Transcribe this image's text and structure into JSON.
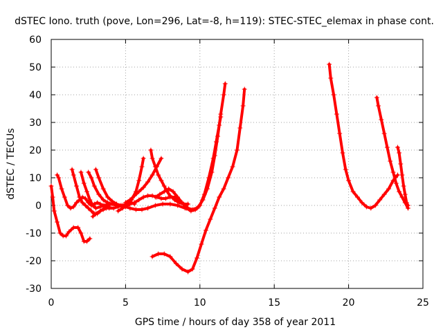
{
  "chart_data": {
    "type": "scatter",
    "title": "dSTEC Iono. truth (pove, Lon=296, Lat=-8, h=119): STEC-STEC_elemax in phase cont.",
    "xlabel": "GPS time / hours of day 358 of year 2011",
    "ylabel": "dSTEC  / TECUs",
    "xlim": [
      0,
      25
    ],
    "ylim": [
      -30,
      60
    ],
    "x_ticks": [
      0,
      5,
      10,
      15,
      20,
      25
    ],
    "y_ticks": [
      -30,
      -20,
      -10,
      0,
      10,
      20,
      30,
      40,
      50,
      60
    ],
    "x_tick_labels": [
      "0",
      "5",
      "10",
      "15",
      "20",
      "25"
    ],
    "y_tick_labels": [
      "-30",
      "-20",
      "-10",
      "0",
      "10",
      "20",
      "30",
      "40",
      "50",
      "60"
    ],
    "grid": true,
    "legend": "none",
    "marker": "+",
    "color": "#ff0000",
    "series": [
      {
        "points": [
          [
            0.0,
            7.0
          ],
          [
            0.1,
            3.0
          ],
          [
            0.2,
            -2.0
          ],
          [
            0.4,
            -6.0
          ],
          [
            0.6,
            -10.0
          ],
          [
            0.8,
            -11.0
          ],
          [
            1.0,
            -11.0
          ],
          [
            1.2,
            -9.5
          ],
          [
            1.5,
            -8.0
          ],
          [
            1.8,
            -8.0
          ],
          [
            2.0,
            -10.0
          ],
          [
            2.2,
            -13.0
          ],
          [
            2.4,
            -13.0
          ],
          [
            2.6,
            -12.0
          ]
        ]
      },
      {
        "points": [
          [
            0.4,
            11.0
          ],
          [
            0.5,
            10.0
          ],
          [
            0.7,
            6.0
          ],
          [
            0.9,
            3.0
          ],
          [
            1.1,
            0.0
          ],
          [
            1.3,
            -1.0
          ],
          [
            1.5,
            -0.5
          ],
          [
            1.7,
            1.0
          ],
          [
            1.9,
            2.0
          ],
          [
            2.1,
            3.0
          ],
          [
            2.3,
            2.5
          ],
          [
            2.5,
            1.0
          ],
          [
            2.7,
            0.0
          ],
          [
            2.9,
            0.5
          ],
          [
            3.1,
            1.0
          ],
          [
            3.3,
            0.5
          ],
          [
            3.5,
            0.0
          ],
          [
            3.7,
            0.0
          ],
          [
            3.9,
            0.0
          ]
        ]
      },
      {
        "points": [
          [
            1.4,
            13.0
          ],
          [
            1.5,
            11.0
          ],
          [
            1.7,
            7.0
          ],
          [
            1.9,
            3.0
          ],
          [
            2.1,
            1.0
          ],
          [
            2.3,
            0.0
          ],
          [
            2.5,
            -1.0
          ],
          [
            2.7,
            -2.0
          ],
          [
            2.9,
            -3.0
          ],
          [
            3.1,
            -3.0
          ],
          [
            3.3,
            -2.0
          ],
          [
            3.5,
            -1.5
          ],
          [
            3.7,
            -1.0
          ],
          [
            3.9,
            -0.5
          ]
        ]
      },
      {
        "points": [
          [
            2.0,
            12.0
          ],
          [
            2.2,
            8.0
          ],
          [
            2.4,
            5.0
          ],
          [
            2.6,
            2.0
          ],
          [
            2.8,
            0.0
          ],
          [
            3.0,
            -1.0
          ],
          [
            3.3,
            -0.5
          ],
          [
            3.6,
            0.0
          ],
          [
            3.9,
            0.5
          ]
        ]
      },
      {
        "points": [
          [
            2.5,
            12.0
          ],
          [
            2.7,
            10.0
          ],
          [
            2.9,
            7.0
          ],
          [
            3.2,
            4.0
          ],
          [
            3.5,
            2.0
          ],
          [
            3.8,
            1.0
          ],
          [
            4.1,
            0.5
          ],
          [
            4.4,
            0.0
          ],
          [
            4.7,
            0.0
          ]
        ]
      },
      {
        "points": [
          [
            3.0,
            13.0
          ],
          [
            3.2,
            10.0
          ],
          [
            3.5,
            6.0
          ],
          [
            3.8,
            3.0
          ],
          [
            4.1,
            1.5
          ],
          [
            4.4,
            0.5
          ],
          [
            4.7,
            0.0
          ]
        ]
      },
      {
        "points": [
          [
            2.8,
            -4.0
          ],
          [
            3.0,
            -3.0
          ],
          [
            3.3,
            -2.0
          ],
          [
            3.6,
            -1.0
          ],
          [
            3.9,
            -1.0
          ],
          [
            4.2,
            -1.0
          ],
          [
            4.5,
            -0.5
          ],
          [
            4.8,
            0.0
          ],
          [
            5.1,
            0.5
          ],
          [
            5.4,
            1.0
          ],
          [
            5.6,
            0.5
          ]
        ]
      },
      {
        "points": [
          [
            4.5,
            -2.0
          ],
          [
            4.8,
            -1.0
          ],
          [
            5.1,
            0.0
          ],
          [
            5.4,
            2.0
          ],
          [
            5.7,
            5.0
          ],
          [
            5.9,
            9.0
          ],
          [
            6.1,
            14.0
          ],
          [
            6.2,
            17.0
          ]
        ]
      },
      {
        "points": [
          [
            5.0,
            1.0
          ],
          [
            5.3,
            2.0
          ],
          [
            5.6,
            3.5
          ],
          [
            5.9,
            5.0
          ],
          [
            6.2,
            6.5
          ],
          [
            6.5,
            8.5
          ],
          [
            6.8,
            11.0
          ],
          [
            7.1,
            14.0
          ],
          [
            7.4,
            17.0
          ]
        ]
      },
      {
        "points": [
          [
            6.7,
            20.0
          ],
          [
            6.8,
            17.0
          ],
          [
            7.0,
            14.0
          ],
          [
            7.2,
            11.0
          ],
          [
            7.4,
            9.0
          ],
          [
            7.6,
            7.0
          ],
          [
            7.8,
            5.0
          ],
          [
            8.0,
            3.5
          ],
          [
            8.3,
            2.0
          ],
          [
            8.6,
            1.0
          ],
          [
            8.9,
            0.5
          ],
          [
            9.2,
            0.5
          ]
        ]
      },
      {
        "points": [
          [
            5.0,
            -0.5
          ],
          [
            5.3,
            0.5
          ],
          [
            5.6,
            1.0
          ],
          [
            5.9,
            2.0
          ],
          [
            6.2,
            3.0
          ],
          [
            6.5,
            3.5
          ],
          [
            6.8,
            3.5
          ],
          [
            7.1,
            3.0
          ],
          [
            7.4,
            2.5
          ],
          [
            7.7,
            2.5
          ],
          [
            8.0,
            3.0
          ],
          [
            8.3,
            3.0
          ],
          [
            8.6,
            2.0
          ],
          [
            8.9,
            0.5
          ],
          [
            9.2,
            -1.0
          ],
          [
            9.5,
            -1.5
          ],
          [
            9.8,
            -1.0
          ]
        ]
      },
      {
        "points": [
          [
            4.7,
            0.0
          ],
          [
            5.0,
            -0.5
          ],
          [
            5.3,
            -1.0
          ],
          [
            5.7,
            -1.5
          ],
          [
            6.1,
            -1.5
          ],
          [
            6.5,
            -1.0
          ],
          [
            7.0,
            0.0
          ],
          [
            7.5,
            0.5
          ],
          [
            8.0,
            0.5
          ],
          [
            8.5,
            0.0
          ],
          [
            9.0,
            -1.0
          ],
          [
            9.3,
            -1.5
          ],
          [
            9.6,
            -1.5
          ],
          [
            9.9,
            -0.5
          ],
          [
            10.2,
            2.0
          ],
          [
            10.5,
            6.0
          ],
          [
            10.8,
            12.0
          ],
          [
            11.0,
            18.0
          ],
          [
            11.2,
            25.0
          ],
          [
            11.4,
            33.0
          ],
          [
            11.6,
            40.0
          ],
          [
            11.7,
            44.0
          ]
        ]
      },
      {
        "points": [
          [
            7.0,
            3.0
          ],
          [
            7.3,
            4.0
          ],
          [
            7.6,
            5.0
          ],
          [
            7.9,
            6.0
          ],
          [
            8.2,
            5.0
          ],
          [
            8.5,
            3.0
          ],
          [
            8.8,
            1.0
          ],
          [
            9.1,
            -1.0
          ],
          [
            9.4,
            -2.0
          ],
          [
            9.7,
            -1.5
          ],
          [
            10.0,
            0.0
          ],
          [
            10.3,
            4.0
          ],
          [
            10.6,
            10.0
          ],
          [
            10.9,
            17.0
          ],
          [
            11.1,
            23.0
          ],
          [
            11.3,
            29.0
          ],
          [
            11.4,
            32.0
          ]
        ]
      },
      {
        "points": [
          [
            6.8,
            -18.5
          ],
          [
            7.2,
            -17.5
          ],
          [
            7.6,
            -17.5
          ],
          [
            8.0,
            -18.5
          ],
          [
            8.4,
            -21.0
          ],
          [
            8.8,
            -23.0
          ],
          [
            9.2,
            -24.0
          ],
          [
            9.5,
            -23.0
          ],
          [
            9.8,
            -19.0
          ],
          [
            10.1,
            -14.0
          ],
          [
            10.4,
            -9.0
          ],
          [
            10.7,
            -5.0
          ],
          [
            11.0,
            -1.0
          ],
          [
            11.3,
            3.0
          ],
          [
            11.6,
            6.0
          ],
          [
            11.9,
            10.0
          ],
          [
            12.2,
            14.0
          ],
          [
            12.5,
            20.0
          ],
          [
            12.7,
            28.0
          ],
          [
            12.9,
            36.0
          ],
          [
            13.0,
            42.0
          ]
        ]
      },
      {
        "points": [
          [
            18.7,
            51.0
          ],
          [
            18.8,
            46.0
          ],
          [
            19.0,
            40.0
          ],
          [
            19.2,
            33.0
          ],
          [
            19.4,
            26.0
          ],
          [
            19.6,
            19.0
          ],
          [
            19.8,
            13.0
          ],
          [
            20.0,
            9.0
          ],
          [
            20.3,
            5.0
          ],
          [
            20.6,
            3.0
          ],
          [
            20.9,
            1.0
          ],
          [
            21.2,
            -0.5
          ],
          [
            21.5,
            -1.0
          ],
          [
            21.8,
            0.0
          ],
          [
            22.1,
            2.0
          ],
          [
            22.4,
            4.0
          ],
          [
            22.7,
            6.0
          ],
          [
            23.0,
            9.0
          ],
          [
            23.3,
            11.0
          ]
        ]
      },
      {
        "points": [
          [
            21.9,
            39.0
          ],
          [
            22.0,
            36.0
          ],
          [
            22.2,
            31.0
          ],
          [
            22.4,
            26.0
          ],
          [
            22.6,
            21.0
          ],
          [
            22.8,
            16.0
          ],
          [
            23.0,
            12.0
          ],
          [
            23.2,
            8.0
          ],
          [
            23.4,
            5.0
          ],
          [
            23.6,
            3.0
          ],
          [
            23.8,
            1.0
          ],
          [
            24.0,
            -1.0
          ]
        ]
      },
      {
        "points": [
          [
            23.3,
            21.0
          ],
          [
            23.4,
            19.0
          ],
          [
            23.5,
            15.0
          ],
          [
            23.6,
            11.0
          ],
          [
            23.7,
            7.0
          ],
          [
            23.8,
            4.0
          ],
          [
            23.9,
            1.0
          ],
          [
            24.0,
            0.0
          ]
        ]
      }
    ]
  }
}
